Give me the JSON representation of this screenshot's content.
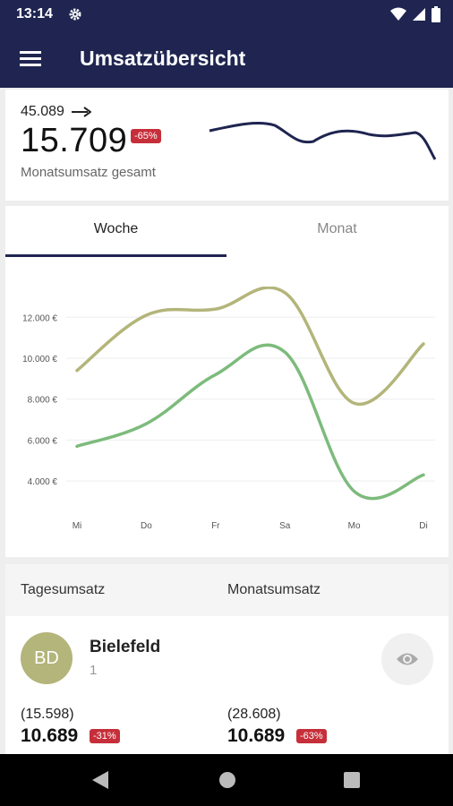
{
  "status_bar": {
    "time": "13:14",
    "icons": [
      "gear-icon",
      "wifi-icon",
      "signal-icon",
      "battery-icon"
    ]
  },
  "app_bar": {
    "title": "Umsatzübersicht",
    "menu_icon": "hamburger-menu-icon"
  },
  "summary": {
    "previous_value": "45.089",
    "trend_icon": "arrow-right-icon",
    "value": "15.709",
    "change_badge": "-65%",
    "label": "Monatsumsatz gesamt",
    "sparkline_color": "#1f2550"
  },
  "tabs": [
    {
      "label": "Woche",
      "active": true
    },
    {
      "label": "Monat",
      "active": false
    }
  ],
  "chart_data": {
    "type": "line",
    "x": [
      "Mi",
      "Do",
      "Fr",
      "Sa",
      "Mo",
      "Di"
    ],
    "y_ticks": [
      "4.000 €",
      "6.000 €",
      "8.000 €",
      "10.000 €",
      "12.000 €"
    ],
    "y_tick_values": [
      4000,
      6000,
      8000,
      10000,
      12000
    ],
    "ylim": [
      3000,
      13500
    ],
    "grid": true,
    "series": [
      {
        "color": "#b3b57a",
        "values": [
          9400,
          12100,
          12400,
          13200,
          7800,
          10700
        ]
      },
      {
        "color": "#7dbb7c",
        "values": [
          5700,
          6800,
          9200,
          10300,
          3500,
          4300
        ]
      }
    ]
  },
  "list": {
    "headers": {
      "day": "Tagesumsatz",
      "month": "Monatsumsatz"
    },
    "items": [
      {
        "initials": "BD",
        "avatar_color": "#b3b57a",
        "name": "Bielefeld",
        "count": "1",
        "action_icon": "eye-icon",
        "day_previous": "(15.598)",
        "day_value": "10.689",
        "day_badge": "-31%",
        "month_previous": "(28.608)",
        "month_value": "10.689",
        "month_badge": "-63%"
      }
    ]
  },
  "nav_bar": {
    "icons": [
      "back-icon",
      "home-icon",
      "recents-icon"
    ]
  }
}
